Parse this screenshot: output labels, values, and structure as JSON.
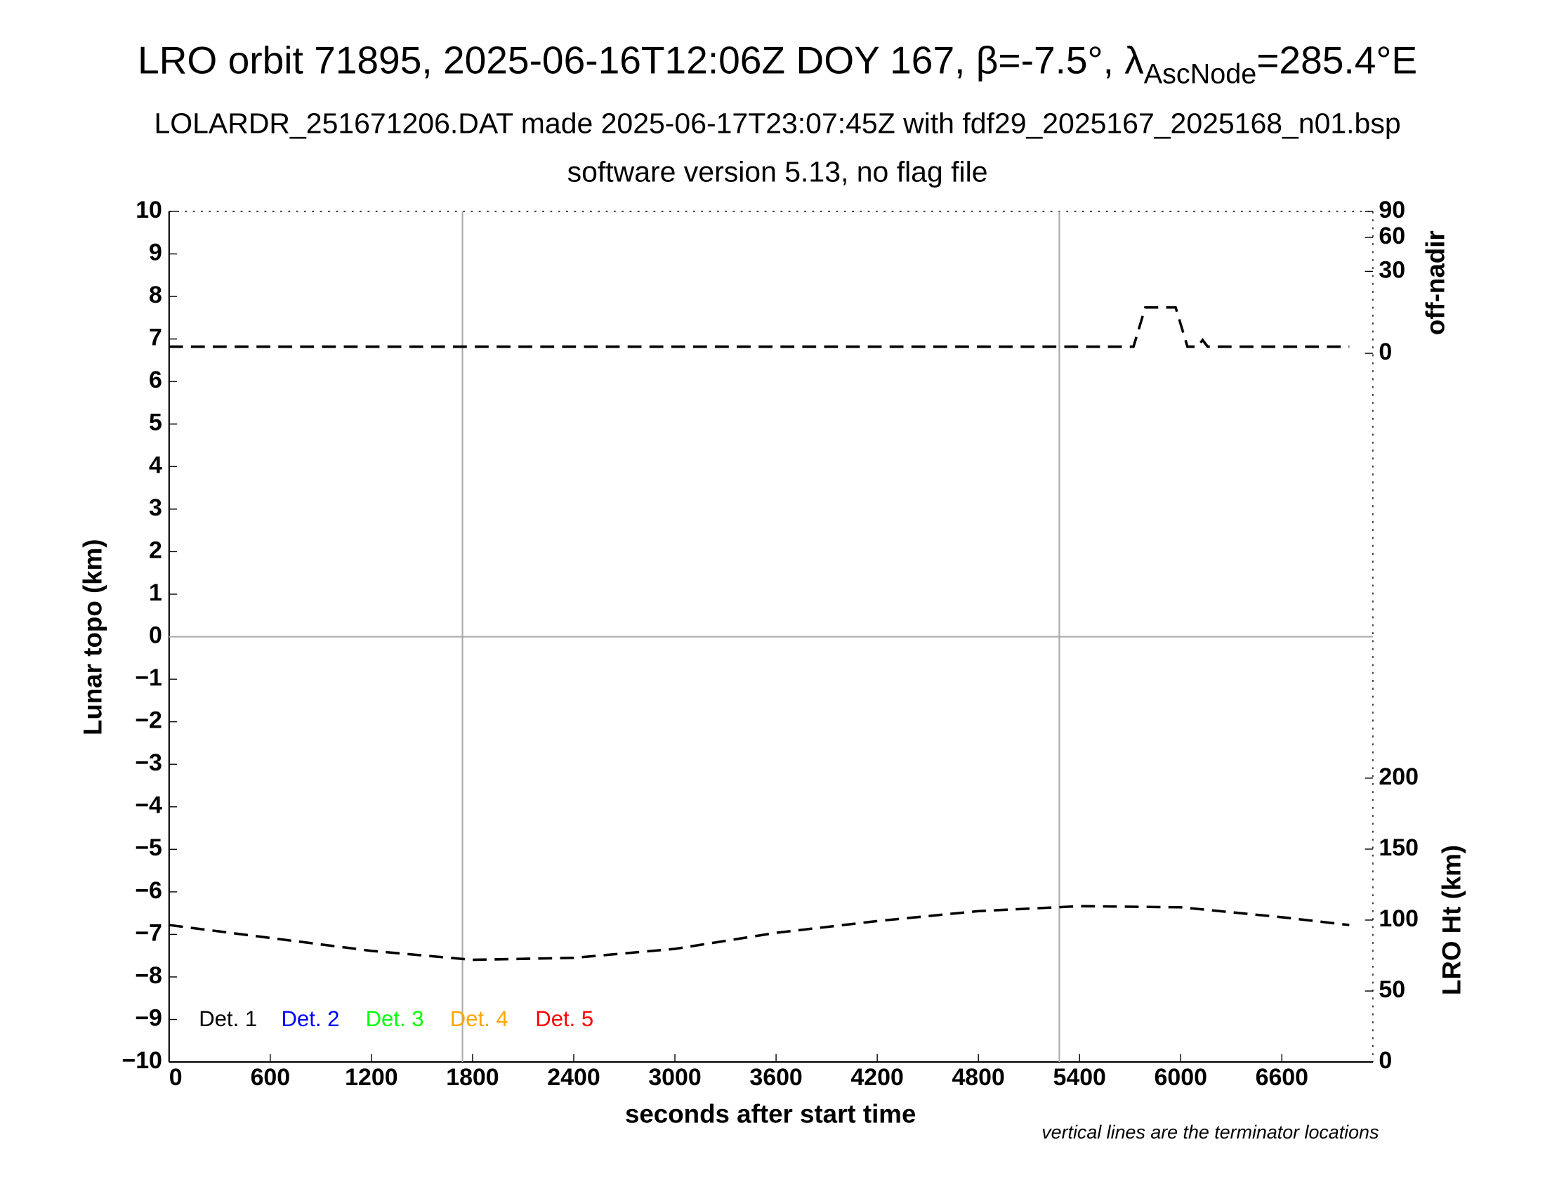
{
  "chart_data": {
    "type": "line",
    "title": "LRO orbit 71895, 2025-06-16T12:06Z DOY 167, β=-7.5°, λ",
    "title_subscript": "AscNode",
    "title_suffix": "=285.4°E",
    "subtitle": "LOLARDR_251671206.DAT made 2025-06-17T23:07:45Z with fdf29_2025167_2025168_n01.bsp",
    "subtitle2": "software version 5.13, no flag file",
    "xlabel": "seconds after start time",
    "ylabel": "Lunar topo (km)",
    "y2label": "off-nadir",
    "y3label": "LRO Ht (km)",
    "note": "vertical lines are the terminator locations",
    "xlim": [
      0,
      7140
    ],
    "xticks": [
      0,
      600,
      1200,
      1800,
      2400,
      3000,
      3600,
      4200,
      4800,
      5400,
      6000,
      6600
    ],
    "ylim": [
      -10,
      10
    ],
    "yticks": [
      {
        "value": -10,
        "label": "−10"
      },
      {
        "value": -9,
        "label": "−9"
      },
      {
        "value": -8,
        "label": "−8"
      },
      {
        "value": -7,
        "label": "−7"
      },
      {
        "value": -6,
        "label": "−6"
      },
      {
        "value": -5,
        "label": "−5"
      },
      {
        "value": -4,
        "label": "−4"
      },
      {
        "value": -3,
        "label": "−3"
      },
      {
        "value": -2,
        "label": "−2"
      },
      {
        "value": -1,
        "label": "−1"
      },
      0,
      1,
      2,
      3,
      4,
      5,
      6,
      7,
      8,
      9,
      10
    ],
    "y2lim": [
      0,
      90
    ],
    "y2scale": "sqrt",
    "y2ticks": [
      0,
      30,
      60,
      90
    ],
    "y3lim": [
      0,
      200
    ],
    "y3ticks": [
      0,
      50,
      100,
      150,
      200
    ],
    "terminators": [
      1740,
      5280
    ],
    "detectors": [
      {
        "name": "Det. 1",
        "color": "#000000"
      },
      {
        "name": "Det. 2",
        "color": "#0000ff"
      },
      {
        "name": "Det. 3",
        "color": "#00ff00"
      },
      {
        "name": "Det. 4",
        "color": "#ffa500"
      },
      {
        "name": "Det. 5",
        "color": "#ff0000"
      }
    ],
    "series": [
      {
        "axis": "y2",
        "color": "#000000",
        "x": [
          0,
          1000,
          2000,
          3000,
          4000,
          5000,
          5720,
          5790,
          5970,
          6040,
          6100,
          6130,
          6160,
          6200,
          7000
        ],
        "values": [
          0.2,
          0.2,
          0.2,
          0.2,
          0.2,
          0.2,
          0.2,
          9.4,
          9.4,
          0.2,
          0.2,
          0.8,
          0.2,
          0.2,
          0.2
        ]
      },
      {
        "axis": "y3",
        "color": "#000000",
        "x": [
          0,
          600,
          1200,
          1800,
          2400,
          3000,
          3600,
          4200,
          4800,
          5400,
          6000,
          6600,
          7000
        ],
        "values": [
          96.5,
          87.4,
          78.3,
          72,
          73.4,
          79.7,
          91,
          99.3,
          106.3,
          109.8,
          109,
          102,
          96.5
        ]
      }
    ]
  }
}
